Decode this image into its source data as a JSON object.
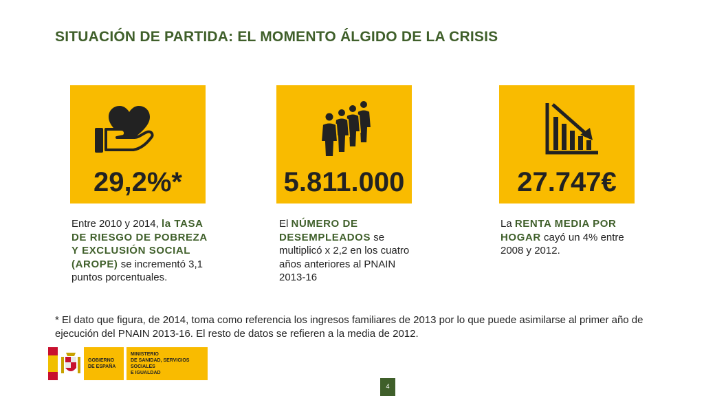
{
  "slide": {
    "title": "SITUACIÓN DE PARTIDA: EL MOMENTO ÁLGIDO DE LA CRISIS",
    "page_number": "4"
  },
  "colors": {
    "accent_yellow": "#f9bb00",
    "brand_green": "#3f5f2a",
    "text": "#222222"
  },
  "cards": [
    {
      "icon": "hand-heart-icon",
      "value": "29,2%*",
      "desc": {
        "pre": "Entre 2010 y 2014,",
        "highlight": "la TASA DE RIESGO DE POBREZA Y EXCLUSIÓN SOCIAL (AROPE)",
        "post": "se incrementó 3,1 puntos porcentuales."
      }
    },
    {
      "icon": "people-queue-icon",
      "value": "5.811.000",
      "desc": {
        "pre": "El",
        "highlight": "NÚMERO DE DESEMPLEADOS",
        "post": "se multiplicó x 2,2 en los cuatro años anteriores al PNAIN 2013-16"
      }
    },
    {
      "icon": "declining-chart-icon",
      "value": "27.747€",
      "desc": {
        "pre": "La",
        "highlight": "RENTA MEDIA POR HOGAR",
        "post": "cayó un 4% entre 2008 y 2012."
      }
    }
  ],
  "footnote": "* El dato que figura, de 2014, toma como referencia los ingresos familiares de 2013 por lo que puede asimilarse al primer año de ejecución del PNAIN 2013-16. El resto de datos se refieren a la media de 2012.",
  "logo": {
    "government": [
      "GOBIERNO",
      "DE ESPAÑA"
    ],
    "ministry": [
      "MINISTERIO",
      "DE SANIDAD, SERVICIOS SOCIALES",
      "E IGUALDAD"
    ]
  }
}
